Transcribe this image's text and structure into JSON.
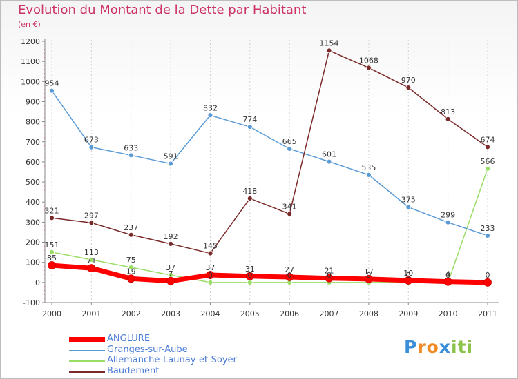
{
  "title": "Evolution du Montant de la Dette par Habitant",
  "subtitle": "(en €)",
  "chart_data": {
    "type": "line",
    "x": [
      "2000",
      "2001",
      "2002",
      "2003",
      "2004",
      "2005",
      "2006",
      "2007",
      "2008",
      "2009",
      "2010",
      "2011"
    ],
    "yticks": [
      -100,
      0,
      100,
      200,
      300,
      400,
      500,
      600,
      700,
      800,
      900,
      1000,
      1100,
      1200
    ],
    "ylim": [
      -100,
      1200
    ],
    "grid": "vertical",
    "legend_position": "bottom-left",
    "series": [
      {
        "name": "ANGLURE",
        "color": "#ff0000",
        "values": [
          85,
          71,
          19,
          7,
          37,
          31,
          27,
          21,
          17,
          10,
          4,
          0
        ]
      },
      {
        "name": "Granges-sur-Aube",
        "color": "#5b9bd5",
        "values": [
          954,
          673,
          633,
          591,
          832,
          774,
          665,
          601,
          535,
          375,
          299,
          233
        ]
      },
      {
        "name": "Allemanche-Launay-et-Soyer",
        "color": "#99dd66",
        "values": [
          151,
          113,
          75,
          37,
          0,
          0,
          0,
          0,
          0,
          0,
          0,
          566
        ]
      },
      {
        "name": "Baudement",
        "color": "#7b2a2a",
        "values": [
          321,
          297,
          237,
          192,
          145,
          418,
          341,
          1154,
          1068,
          970,
          813,
          674
        ]
      }
    ],
    "labels": [
      {
        "series": 3,
        "x": "2000",
        "text": "321"
      },
      {
        "series": 3,
        "x": "2001",
        "text": "297"
      },
      {
        "series": 3,
        "x": "2002",
        "text": "237"
      },
      {
        "series": 3,
        "x": "2003",
        "text": "192"
      },
      {
        "series": 3,
        "x": "2004",
        "text": "145"
      },
      {
        "series": 3,
        "x": "2005",
        "text": "418"
      },
      {
        "series": 3,
        "x": "2006",
        "text": "341"
      },
      {
        "series": 3,
        "x": "2007",
        "text": "1154"
      },
      {
        "series": 3,
        "x": "2008",
        "text": "1068"
      },
      {
        "series": 3,
        "x": "2009",
        "text": "970"
      },
      {
        "series": 3,
        "x": "2010",
        "text": "813"
      },
      {
        "series": 3,
        "x": "2011",
        "text": "674"
      },
      {
        "series": 1,
        "x": "2000",
        "text": "954"
      },
      {
        "series": 1,
        "x": "2001",
        "text": "673"
      },
      {
        "series": 1,
        "x": "2002",
        "text": "633"
      },
      {
        "series": 1,
        "x": "2003",
        "text": "591"
      },
      {
        "series": 1,
        "x": "2004",
        "text": "832"
      },
      {
        "series": 1,
        "x": "2005",
        "text": "774"
      },
      {
        "series": 1,
        "x": "2006",
        "text": "665"
      },
      {
        "series": 1,
        "x": "2007",
        "text": "601"
      },
      {
        "series": 1,
        "x": "2008",
        "text": "535"
      },
      {
        "series": 1,
        "x": "2009",
        "text": "375"
      },
      {
        "series": 1,
        "x": "2010",
        "text": "299"
      },
      {
        "series": 1,
        "x": "2011",
        "text": "233"
      },
      {
        "series": 2,
        "x": "2000",
        "text": "151"
      },
      {
        "series": 2,
        "x": "2001",
        "text": "113"
      },
      {
        "series": 2,
        "x": "2002",
        "text": "75"
      },
      {
        "series": 2,
        "x": "2003",
        "text": "37"
      },
      {
        "series": 2,
        "x": "2011",
        "text": "566"
      },
      {
        "series": 0,
        "x": "2000",
        "text": "85"
      },
      {
        "series": 0,
        "x": "2001",
        "text": "71"
      },
      {
        "series": 0,
        "x": "2002",
        "text": "19"
      },
      {
        "series": 0,
        "x": "2003",
        "text": "7"
      },
      {
        "series": 0,
        "x": "2004",
        "text": "37"
      },
      {
        "series": 0,
        "x": "2005",
        "text": "31"
      },
      {
        "series": 0,
        "x": "2006",
        "text": "27"
      },
      {
        "series": 0,
        "x": "2007",
        "text": "21"
      },
      {
        "series": 0,
        "x": "2008",
        "text": "17"
      },
      {
        "series": 0,
        "x": "2009",
        "text": "10"
      },
      {
        "series": 0,
        "x": "2010",
        "text": "4"
      },
      {
        "series": 0,
        "x": "2011",
        "text": "0"
      },
      {
        "series": 2,
        "x": "2004",
        "text": "0"
      },
      {
        "series": 2,
        "x": "2005",
        "text": "0"
      },
      {
        "series": 2,
        "x": "2006",
        "text": "0"
      },
      {
        "series": 2,
        "x": "2007",
        "text": "0"
      },
      {
        "series": 2,
        "x": "2008",
        "text": "0"
      },
      {
        "series": 2,
        "x": "2009",
        "text": "0"
      },
      {
        "series": 2,
        "x": "2010",
        "text": "0"
      }
    ]
  },
  "legend": {
    "items": [
      {
        "label": "ANGLURE"
      },
      {
        "label": "Granges-sur-Aube"
      },
      {
        "label": "Allemanche-Launay-et-Soyer"
      },
      {
        "label": "Baudement"
      }
    ]
  },
  "logo": {
    "letters": [
      "P",
      "r",
      "o",
      "x",
      "i",
      "t",
      "i"
    ],
    "colors": [
      "#3a8fd8",
      "#f08a24",
      "#f08a24",
      "#3a8fd8",
      "#8bc34a",
      "#8bc34a",
      "#8bc34a"
    ]
  }
}
